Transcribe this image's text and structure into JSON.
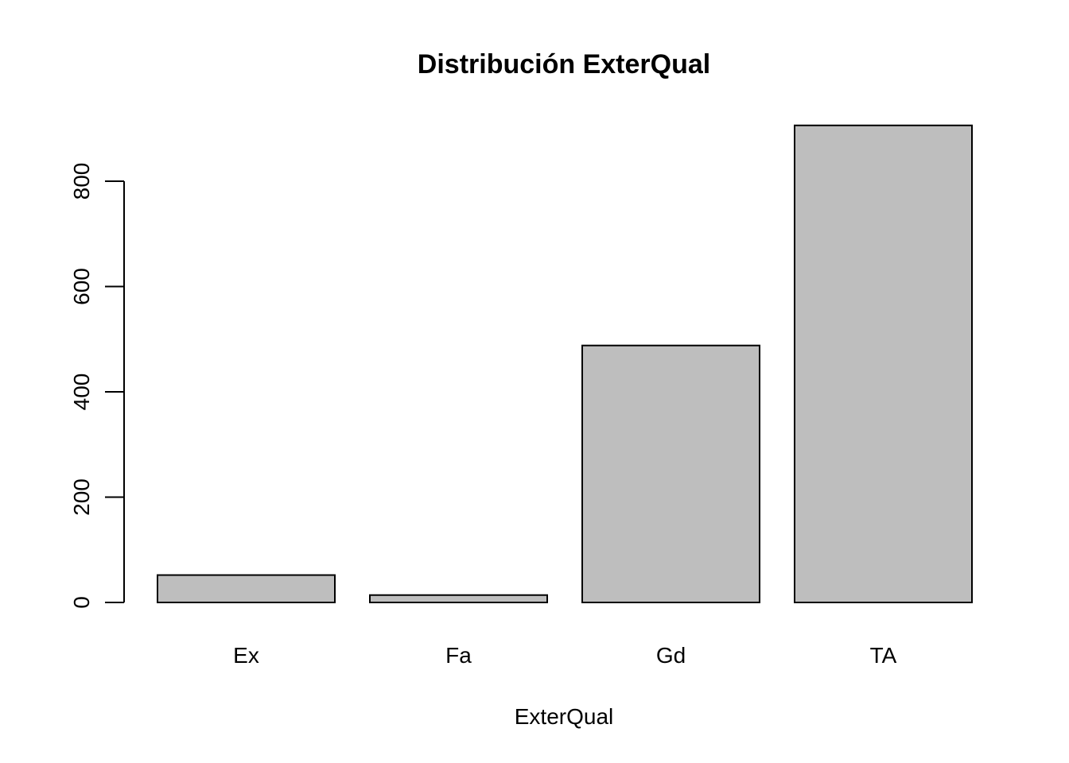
{
  "chart_data": {
    "type": "bar",
    "title": "Distribución ExterQual",
    "xlabel": "ExterQual",
    "ylabel": "",
    "categories": [
      "Ex",
      "Fa",
      "Gd",
      "TA"
    ],
    "values": [
      52,
      14,
      488,
      906
    ],
    "yticks": [
      0,
      200,
      400,
      600,
      800
    ],
    "ylim": [
      0,
      906
    ],
    "bar_color": "#bebebe",
    "grid": false,
    "legend": "none"
  }
}
